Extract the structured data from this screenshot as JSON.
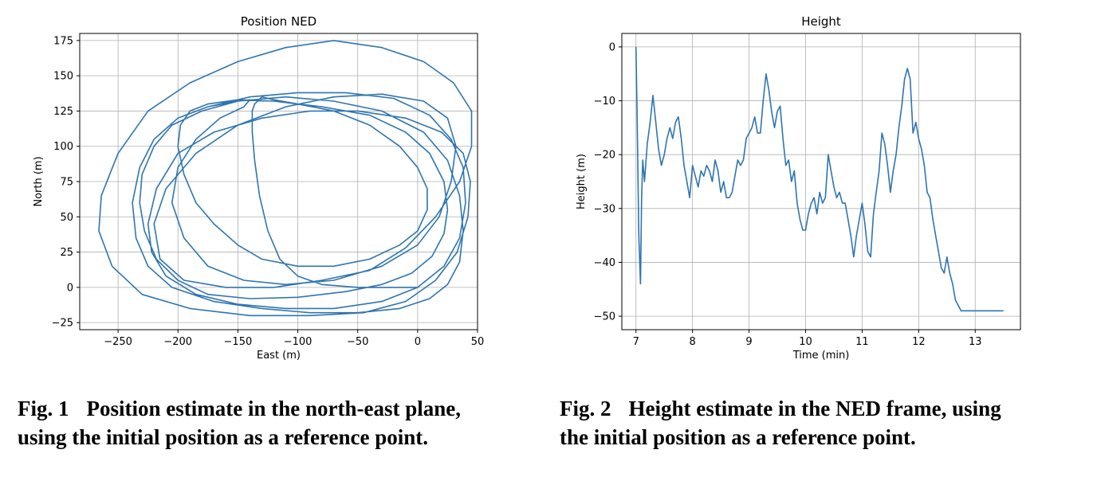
{
  "chart_data": [
    {
      "type": "line",
      "title": "Position NED",
      "xlabel": "East (m)",
      "ylabel": "North (m)",
      "xlim": [
        -282,
        50
      ],
      "ylim": [
        -30,
        180
      ],
      "xticks": [
        -250,
        -200,
        -150,
        -100,
        -50,
        0,
        50
      ],
      "xtick_labels": [
        "−250",
        "−200",
        "−150",
        "−100",
        "−50",
        "0",
        "50"
      ],
      "yticks": [
        -25,
        0,
        25,
        50,
        75,
        100,
        125,
        150,
        175
      ],
      "ytick_labels": [
        "−25",
        "0",
        "25",
        "50",
        "75",
        "100",
        "125",
        "150",
        "175"
      ],
      "grid": true,
      "color": "#2e75b0",
      "series": [
        {
          "x": [
            0,
            -20,
            -50,
            -80,
            -100,
            -115,
            -125,
            -132,
            -136,
            -138,
            -138,
            -136,
            -130,
            -120,
            -100,
            -70,
            -40,
            -15,
            0,
            8,
            8,
            0,
            -15,
            -40,
            -70,
            -100,
            -130,
            -150,
            -170,
            -185,
            -195,
            -200,
            -198,
            -190,
            -175,
            -150,
            -120,
            -80,
            -40,
            -10,
            10,
            22,
            25,
            22,
            12,
            -5,
            -30,
            -60,
            -100,
            -140,
            -175,
            -200,
            -218,
            -228,
            -232,
            -230,
            -220,
            -205,
            -180,
            -150,
            -110,
            -70,
            -30,
            5,
            25,
            35,
            38,
            35,
            25,
            10,
            -15,
            -50,
            -90,
            -130,
            -170,
            -205,
            -225,
            -235,
            -238,
            -232,
            -220,
            -200,
            -175,
            -140,
            -100,
            -60,
            -20,
            10,
            28,
            38,
            40,
            35,
            22,
            0,
            -30,
            -70,
            -110,
            -150,
            -185,
            -210,
            -222,
            -225,
            -218,
            -200,
            -170,
            -130,
            -90,
            -50,
            -10,
            20,
            38,
            44,
            42,
            33,
            15,
            -10,
            -45,
            -90,
            -140,
            -190,
            -230,
            -255,
            -266,
            -264,
            -250,
            -225,
            -190,
            -150,
            -110,
            -70,
            -30,
            5,
            30,
            45,
            45,
            35,
            15,
            -10,
            -40,
            -80,
            -120,
            -160,
            -195,
            -215,
            -220,
            -210,
            -185,
            -150,
            -110,
            -70,
            -30,
            5,
            25,
            32,
            28,
            18,
            0,
            -30,
            -70,
            -110,
            -145,
            -175,
            -195,
            -205,
            -200,
            -185,
            -165,
            -145,
            -140,
            -150,
            -175
          ],
          "y": [
            0,
            0,
            0,
            2,
            8,
            20,
            40,
            65,
            90,
            110,
            125,
            130,
            135,
            133,
            130,
            125,
            115,
            100,
            85,
            70,
            55,
            40,
            30,
            20,
            15,
            15,
            20,
            30,
            45,
            60,
            80,
            100,
            115,
            125,
            130,
            133,
            132,
            128,
            122,
            110,
            95,
            75,
            55,
            38,
            22,
            10,
            2,
            -3,
            -7,
            -8,
            -5,
            5,
            20,
            40,
            60,
            80,
            100,
            115,
            125,
            132,
            135,
            132,
            125,
            110,
            90,
            65,
            40,
            18,
            2,
            -8,
            -15,
            -18,
            -18,
            -15,
            -10,
            0,
            15,
            35,
            60,
            85,
            105,
            120,
            128,
            135,
            138,
            138,
            134,
            122,
            105,
            85,
            60,
            35,
            15,
            0,
            -10,
            -15,
            -15,
            -12,
            -5,
            8,
            25,
            45,
            70,
            95,
            110,
            120,
            125,
            125,
            120,
            110,
            95,
            75,
            50,
            25,
            5,
            -10,
            -18,
            -20,
            -20,
            -15,
            -5,
            15,
            40,
            65,
            95,
            125,
            145,
            160,
            170,
            175,
            170,
            160,
            145,
            125,
            100,
            75,
            50,
            28,
            12,
            5,
            0,
            0,
            5,
            20,
            45,
            70,
            95,
            115,
            128,
            135,
            137,
            132,
            120,
            100,
            75,
            50,
            30,
            15,
            5,
            2,
            5,
            15,
            35,
            60,
            85,
            105,
            120,
            128,
            133,
            132,
            128
          ]
        }
      ]
    },
    {
      "type": "line",
      "title": "Height",
      "xlabel": "Time (min)",
      "ylabel": "Height (m)",
      "xlim": [
        6.75,
        13.8
      ],
      "ylim": [
        -52.5,
        2.5
      ],
      "xticks": [
        7,
        8,
        9,
        10,
        11,
        12,
        13
      ],
      "xtick_labels": [
        "7",
        "8",
        "9",
        "10",
        "11",
        "12",
        "13"
      ],
      "yticks": [
        0,
        -10,
        -20,
        -30,
        -40,
        -50
      ],
      "ytick_labels": [
        "0",
        "−10",
        "−20",
        "−30",
        "−40",
        "−50"
      ],
      "grid": true,
      "color": "#2e75b0",
      "series": [
        {
          "x": [
            7.0,
            7.02,
            7.05,
            7.08,
            7.1,
            7.12,
            7.15,
            7.2,
            7.25,
            7.3,
            7.35,
            7.4,
            7.45,
            7.5,
            7.55,
            7.6,
            7.65,
            7.7,
            7.75,
            7.8,
            7.85,
            7.9,
            7.95,
            8.0,
            8.05,
            8.1,
            8.15,
            8.2,
            8.25,
            8.3,
            8.35,
            8.4,
            8.45,
            8.5,
            8.55,
            8.6,
            8.65,
            8.7,
            8.75,
            8.8,
            8.85,
            8.9,
            8.95,
            9.0,
            9.05,
            9.1,
            9.15,
            9.2,
            9.25,
            9.3,
            9.35,
            9.4,
            9.45,
            9.5,
            9.55,
            9.6,
            9.65,
            9.7,
            9.75,
            9.8,
            9.85,
            9.9,
            9.95,
            10.0,
            10.05,
            10.1,
            10.15,
            10.2,
            10.25,
            10.3,
            10.35,
            10.4,
            10.45,
            10.5,
            10.55,
            10.6,
            10.65,
            10.7,
            10.75,
            10.8,
            10.85,
            10.9,
            10.95,
            11.0,
            11.05,
            11.1,
            11.15,
            11.2,
            11.25,
            11.3,
            11.35,
            11.4,
            11.45,
            11.5,
            11.55,
            11.6,
            11.65,
            11.7,
            11.75,
            11.8,
            11.85,
            11.9,
            11.95,
            12.0,
            12.05,
            12.1,
            12.15,
            12.2,
            12.25,
            12.3,
            12.35,
            12.4,
            12.45,
            12.5,
            12.55,
            12.6,
            12.65,
            12.7,
            12.75,
            12.8,
            12.85,
            12.9,
            12.95,
            13.0,
            13.05,
            13.1,
            13.15,
            13.2,
            13.25,
            13.3,
            13.35,
            13.4,
            13.45,
            13.5
          ],
          "y": [
            0,
            -12,
            -35,
            -44,
            -28,
            -21,
            -25,
            -18,
            -14,
            -9,
            -14,
            -19,
            -22,
            -20,
            -17,
            -15,
            -17,
            -14,
            -13,
            -17,
            -22,
            -25,
            -28,
            -22,
            -24,
            -26,
            -23,
            -24,
            -22,
            -23,
            -25,
            -21,
            -23,
            -27,
            -25,
            -28,
            -28,
            -27,
            -24,
            -21,
            -22,
            -21,
            -17,
            -16,
            -15,
            -13,
            -16,
            -16,
            -10,
            -5,
            -8,
            -12,
            -15,
            -12,
            -11,
            -17,
            -22,
            -21,
            -25,
            -23,
            -29,
            -32,
            -34,
            -34,
            -31,
            -29,
            -28,
            -31,
            -27,
            -29,
            -28,
            -20,
            -23,
            -26,
            -28,
            -27,
            -29,
            -29,
            -32,
            -35,
            -39,
            -35,
            -32,
            -29,
            -33,
            -38,
            -39,
            -31,
            -27,
            -23,
            -16,
            -18,
            -22,
            -27,
            -23,
            -20,
            -15,
            -11,
            -6,
            -4,
            -6,
            -16,
            -14,
            -17,
            -19,
            -22,
            -27,
            -28,
            -32,
            -35,
            -38,
            -41,
            -42,
            -39,
            -42,
            -44,
            -47,
            -48,
            -49,
            -49,
            -49,
            -49,
            -49,
            -49,
            -49,
            -49,
            -49,
            -49,
            -49,
            -49,
            -49,
            -49,
            -49,
            -49
          ],
          "y_note": "approximate trace"
        }
      ]
    }
  ],
  "captions": {
    "fig1_label": "Fig. 1",
    "fig1_line1": "Position estimate in the north-east plane,",
    "fig1_line2": "using the initial position as a reference point.",
    "fig2_label": "Fig. 2",
    "fig2_line1": "Height estimate in the NED frame, using",
    "fig2_line2": "the initial position as a reference point."
  }
}
